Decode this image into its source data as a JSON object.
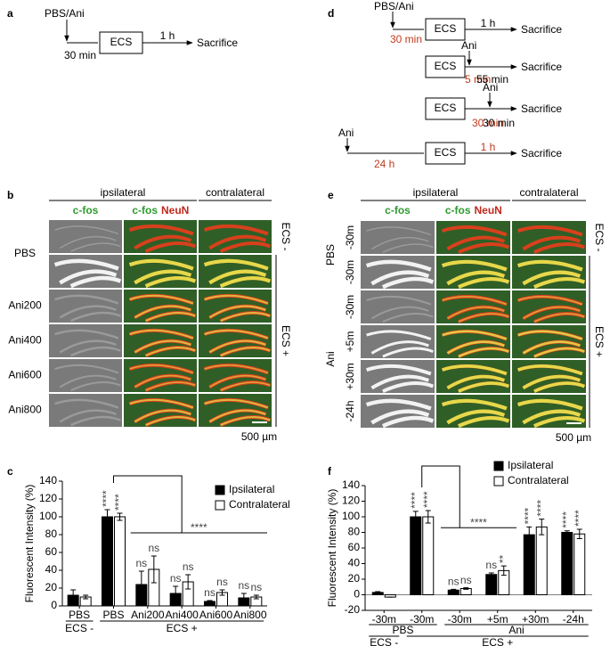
{
  "panel_labels": [
    "a",
    "b",
    "c",
    "d",
    "e",
    "f"
  ],
  "diagram_a": {
    "treatment": "PBS/Ani",
    "delay": "30 min",
    "box": "ECS",
    "interval": "1 h",
    "end": "Sacrifice"
  },
  "diagram_d": {
    "rows": [
      {
        "treatment": "PBS/Ani",
        "delay": "30 min",
        "box": "ECS",
        "interval": "1 h",
        "end": "Sacrifice"
      },
      {
        "treatment": "Ani",
        "box": "ECS",
        "delay": "5 min",
        "interval": "55 min",
        "end": "Sacrifice"
      },
      {
        "treatment": "Ani",
        "box": "ECS",
        "delay": "30 min",
        "interval": "30 min",
        "end": "Sacrifice"
      },
      {
        "treatment": "Ani",
        "delay": "24 h",
        "box": "ECS",
        "interval": "1 h",
        "end": "Sacrifice"
      }
    ]
  },
  "panel_b": {
    "headers": [
      "ipsilateral",
      "contralateral"
    ],
    "stains": [
      "c-fos",
      "c-fos",
      "NeuN"
    ],
    "row_labels": [
      "PBS",
      "Ani200",
      "Ani400",
      "Ani600",
      "Ani800"
    ],
    "side_labels": [
      "ECS -",
      "ECS +"
    ],
    "scale_bar": "500 µm"
  },
  "panel_e": {
    "headers": [
      "ipsilateral",
      "contralateral"
    ],
    "stains": [
      "c-fos",
      "c-fos",
      "NeuN"
    ],
    "group_labels": [
      "PBS",
      "Ani"
    ],
    "row_labels": [
      "-30m",
      "-30m",
      "-30m",
      "+5m",
      "+30m",
      "-24h"
    ],
    "side_labels": [
      "ECS -",
      "ECS +"
    ],
    "scale_bar": "500 µm"
  },
  "chart_data": [
    {
      "type": "bar",
      "y_label": "Fluorescent Intensity (%)",
      "categories": [
        "PBS",
        "PBS",
        "Ani200",
        "Ani400",
        "Ani600",
        "Ani800"
      ],
      "group_labels": [
        "ECS -",
        "ECS +"
      ],
      "series": [
        {
          "name": "Ipsilateral",
          "color": "#000000",
          "values": [
            12,
            100,
            24,
            14,
            5,
            9
          ],
          "errors": [
            6,
            8,
            15,
            8,
            1,
            5
          ],
          "sig_labels": [
            null,
            "****",
            "ns",
            "ns",
            "ns",
            "ns"
          ]
        },
        {
          "name": "Contralateral",
          "color": "#ffffff",
          "values": [
            10,
            100,
            41,
            27,
            15,
            10
          ],
          "errors": [
            2,
            4,
            15,
            8,
            3,
            2
          ],
          "sig_labels": [
            null,
            "****",
            "ns",
            "ns",
            "ns",
            "ns"
          ]
        }
      ],
      "annotation": "****",
      "ylim": [
        0,
        140
      ],
      "yticks": [
        0,
        20,
        40,
        60,
        80,
        100,
        120,
        140
      ],
      "legend": "upper right"
    },
    {
      "type": "bar",
      "y_label": "Fluorescent Intensity (%)",
      "categories": [
        "-30m",
        "-30m",
        "-30m",
        "+5m",
        "+30m",
        "-24h"
      ],
      "group_labels": [
        "PBS",
        "Ani"
      ],
      "condition_labels": [
        "ECS -",
        "ECS +"
      ],
      "series": [
        {
          "name": "Ipsilateral",
          "color": "#000000",
          "values": [
            3,
            100,
            6,
            26,
            77,
            80
          ],
          "errors": [
            1,
            7,
            1,
            2,
            10,
            2
          ],
          "sig_labels": [
            null,
            "****",
            "ns",
            "ns",
            "****",
            "****"
          ]
        },
        {
          "name": "Contralateral",
          "color": "#ffffff",
          "values": [
            -3,
            100,
            8,
            31,
            87,
            78
          ],
          "errors": [
            0,
            8,
            1,
            6,
            10,
            6
          ],
          "sig_labels": [
            null,
            "****",
            "ns",
            "**",
            "****",
            "****"
          ]
        }
      ],
      "annotation": "****",
      "ylim": [
        -20,
        140
      ],
      "yticks": [
        -20,
        0,
        20,
        40,
        60,
        80,
        100,
        120,
        140
      ],
      "legend": "upper right"
    }
  ]
}
